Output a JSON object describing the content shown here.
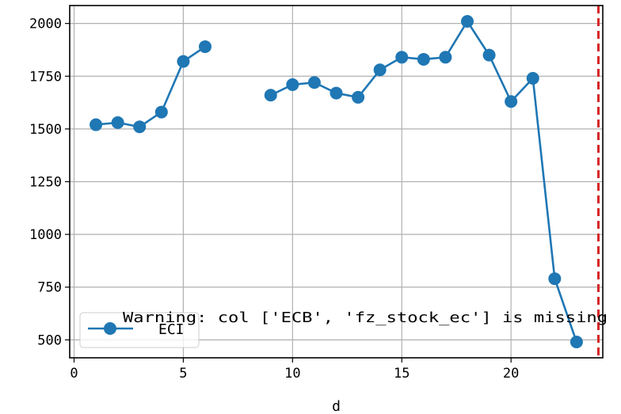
{
  "chart_data": {
    "type": "line",
    "title": "",
    "xlabel": "d",
    "ylabel": "",
    "xlim": [
      -0.2,
      24.2
    ],
    "ylim": [
      415,
      2085
    ],
    "xticks": [
      0,
      5,
      10,
      15,
      20
    ],
    "yticks": [
      500,
      750,
      1000,
      1250,
      1500,
      1750,
      2000
    ],
    "grid": true,
    "legend_position": "lower-left",
    "series": [
      {
        "name": "ECI",
        "color": "#1f77b4",
        "marker": "circle",
        "x": [
          1,
          2,
          3,
          4,
          5,
          6,
          7,
          8,
          9,
          10,
          11,
          12,
          13,
          14,
          15,
          16,
          17,
          18,
          19,
          20,
          21,
          22,
          23
        ],
        "y": [
          1520,
          1530,
          1510,
          1580,
          1820,
          1890,
          null,
          null,
          1660,
          1710,
          1720,
          1670,
          1650,
          1780,
          1840,
          1830,
          1840,
          2010,
          1850,
          1630,
          1740,
          790,
          490
        ]
      }
    ],
    "vline": {
      "x": 24,
      "color": "#d62728",
      "style": "dashed"
    },
    "annotation": "Warning: col ['ECB', 'fz_stock_ec'] is missing"
  }
}
